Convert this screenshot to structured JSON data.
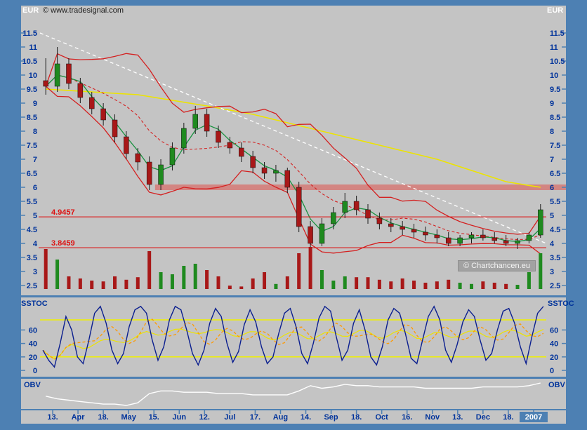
{
  "header": {
    "copyright": "© www.tradesignal.com",
    "currency_left": "EUR",
    "currency_right": "EUR"
  },
  "watermark": "© Chartchancen.eu",
  "colors": {
    "frame": "#4d80b3",
    "plot_bg": "#c4c4c4",
    "axis_text": "#00339b",
    "candle_up": "#1f8a1f",
    "candle_down": "#a81818",
    "bollinger": "#d42020",
    "ma_short": "#18913f",
    "ma_long": "#ede400",
    "trendline": "#ffffff",
    "level": "#dd1111",
    "resistance_band": "#d4827e",
    "sstoc_k": "#0b1f8f",
    "sstoc_d": "#ff9a00",
    "sstoc_slow": "#ede400",
    "sstoc_guide": "#f0f000",
    "obv": "#ffffff"
  },
  "panels": {
    "price": {
      "unit": "EUR",
      "y_ticks": [
        11.5,
        11,
        10.5,
        10,
        9.5,
        9,
        8.5,
        8,
        7.5,
        7,
        6.5,
        6,
        5.5,
        5,
        4.5,
        4,
        3.5,
        3,
        2.5
      ]
    },
    "sstoc": {
      "label": "SSTOC",
      "y_ticks": [
        60,
        40,
        20,
        0
      ]
    },
    "obv": {
      "label": "OBV"
    }
  },
  "x_axis": {
    "labels": [
      "13.",
      "Apr",
      "18.",
      "May",
      "15.",
      "Jun",
      "12.",
      "Jul",
      "17.",
      "Aug",
      "14.",
      "Sep",
      "18.",
      "Oct",
      "16.",
      "Nov",
      "13.",
      "Dec",
      "18.",
      "2007"
    ],
    "highlight": "2007"
  },
  "chart_data": [
    {
      "type": "candlestick",
      "name": "Price (EUR, weekly)",
      "ylim": [
        2.5,
        11.5
      ],
      "dates": [
        "2006-03-13",
        "2006-03-20",
        "2006-03-27",
        "2006-04-03",
        "2006-04-10",
        "2006-04-17",
        "2006-04-24",
        "2006-05-01",
        "2006-05-08",
        "2006-05-15",
        "2006-05-22",
        "2006-05-29",
        "2006-06-05",
        "2006-06-12",
        "2006-06-19",
        "2006-06-26",
        "2006-07-03",
        "2006-07-10",
        "2006-07-17",
        "2006-07-24",
        "2006-07-31",
        "2006-08-07",
        "2006-08-14",
        "2006-08-21",
        "2006-08-28",
        "2006-09-04",
        "2006-09-11",
        "2006-09-18",
        "2006-09-25",
        "2006-10-02",
        "2006-10-09",
        "2006-10-16",
        "2006-10-23",
        "2006-10-30",
        "2006-11-06",
        "2006-11-13",
        "2006-11-20",
        "2006-11-27",
        "2006-12-04",
        "2006-12-11",
        "2006-12-18",
        "2006-12-25",
        "2007-01-01",
        "2007-01-08"
      ],
      "ohlc": [
        [
          9.8,
          10.6,
          9.3,
          9.6
        ],
        [
          9.6,
          11.0,
          9.4,
          10.4
        ],
        [
          10.4,
          10.6,
          9.5,
          9.7
        ],
        [
          9.7,
          9.9,
          9.0,
          9.2
        ],
        [
          9.2,
          9.4,
          8.6,
          8.8
        ],
        [
          8.8,
          9.0,
          8.2,
          8.4
        ],
        [
          8.4,
          8.6,
          7.6,
          7.8
        ],
        [
          7.8,
          8.0,
          7.0,
          7.2
        ],
        [
          7.2,
          7.4,
          6.6,
          6.9
        ],
        [
          6.9,
          7.1,
          5.9,
          6.1
        ],
        [
          6.1,
          7.0,
          5.9,
          6.8
        ],
        [
          6.8,
          7.6,
          6.6,
          7.4
        ],
        [
          7.4,
          8.3,
          7.2,
          8.1
        ],
        [
          8.1,
          8.9,
          7.9,
          8.6
        ],
        [
          8.6,
          8.8,
          7.8,
          8.0
        ],
        [
          8.0,
          8.2,
          7.4,
          7.6
        ],
        [
          7.6,
          7.8,
          7.2,
          7.4
        ],
        [
          7.4,
          7.6,
          6.9,
          7.1
        ],
        [
          7.1,
          7.3,
          6.5,
          6.7
        ],
        [
          6.7,
          6.9,
          6.3,
          6.5
        ],
        [
          6.5,
          6.8,
          6.2,
          6.6
        ],
        [
          6.6,
          6.7,
          5.8,
          6.0
        ],
        [
          6.0,
          6.2,
          4.4,
          4.6
        ],
        [
          4.6,
          4.8,
          3.7,
          4.0
        ],
        [
          4.0,
          4.9,
          3.9,
          4.7
        ],
        [
          4.7,
          5.3,
          4.5,
          5.1
        ],
        [
          5.1,
          5.8,
          4.9,
          5.5
        ],
        [
          5.5,
          5.7,
          5.0,
          5.2
        ],
        [
          5.2,
          5.4,
          4.7,
          4.9
        ],
        [
          4.9,
          5.1,
          4.5,
          4.7
        ],
        [
          4.7,
          4.9,
          4.4,
          4.6
        ],
        [
          4.6,
          4.8,
          4.3,
          4.5
        ],
        [
          4.5,
          4.7,
          4.2,
          4.4
        ],
        [
          4.4,
          4.6,
          4.1,
          4.3
        ],
        [
          4.3,
          4.5,
          4.0,
          4.2
        ],
        [
          4.2,
          4.4,
          3.9,
          4.0
        ],
        [
          4.0,
          4.3,
          3.9,
          4.2
        ],
        [
          4.2,
          4.4,
          4.0,
          4.3
        ],
        [
          4.3,
          4.5,
          4.1,
          4.2
        ],
        [
          4.2,
          4.4,
          4.0,
          4.1
        ],
        [
          4.1,
          4.3,
          3.9,
          4.0
        ],
        [
          4.0,
          4.2,
          3.8,
          4.1
        ],
        [
          4.1,
          4.4,
          4.0,
          4.3
        ],
        [
          4.3,
          5.4,
          4.2,
          5.2
        ]
      ],
      "volume": [
        95,
        70,
        30,
        25,
        20,
        18,
        30,
        22,
        28,
        90,
        40,
        35,
        55,
        60,
        45,
        30,
        8,
        6,
        25,
        40,
        12,
        30,
        85,
        100,
        45,
        20,
        30,
        28,
        28,
        22,
        18,
        25,
        20,
        15,
        18,
        22,
        15,
        12,
        18,
        15,
        12,
        10,
        40,
        85
      ],
      "levels": [
        {
          "value": 4.9457,
          "label": "4.9457"
        },
        {
          "value": 3.8459,
          "label": "3.8459"
        }
      ],
      "resistance_zone": {
        "start_index": 10,
        "low": 5.9,
        "high": 6.1
      },
      "overlays": {
        "ma_long": {
          "name": "long moving average",
          "points": [
            [
              0,
              9.5
            ],
            [
              8,
              9.3
            ],
            [
              14,
              8.9
            ],
            [
              18,
              8.6
            ],
            [
              22,
              8.2
            ],
            [
              26,
              7.8
            ],
            [
              30,
              7.4
            ],
            [
              34,
              7.0
            ],
            [
              37,
              6.6
            ],
            [
              40,
              6.2
            ],
            [
              43,
              6.0
            ]
          ]
        },
        "trendline": {
          "name": "downtrend line",
          "from_value": 11.5,
          "to_value": 4.0
        },
        "bands": {
          "name": "volatility bands",
          "basis": "SMA(8) ± 1.9·σ(8)"
        },
        "ma_short": {
          "name": "short moving average",
          "basis": "SMA(3)"
        }
      }
    },
    {
      "type": "line",
      "name": "SSTOC",
      "ylim": [
        0,
        100
      ],
      "guides": [
        20,
        75
      ],
      "k": [
        30,
        15,
        5,
        40,
        80,
        60,
        20,
        10,
        45,
        85,
        95,
        70,
        30,
        10,
        25,
        65,
        90,
        95,
        85,
        45,
        15,
        35,
        75,
        95,
        90,
        60,
        25,
        8,
        30,
        70,
        92,
        80,
        40,
        12,
        28,
        68,
        90,
        72,
        35,
        10,
        20,
        55,
        85,
        92,
        65,
        25,
        10,
        40,
        78,
        95,
        88,
        50,
        15,
        30,
        70,
        90,
        60,
        20,
        8,
        35,
        75,
        92,
        85,
        55,
        18,
        10,
        45,
        80,
        95,
        75,
        30,
        12,
        38,
        72,
        90,
        80,
        45,
        15,
        25,
        60,
        88,
        92,
        70,
        35,
        10,
        50,
        85,
        95
      ],
      "d_basis": "SMA(5) of k",
      "slow_basis": "SMA(15) of k"
    },
    {
      "type": "line",
      "name": "OBV",
      "values": [
        20,
        18,
        17,
        16,
        15,
        14,
        14,
        13,
        15,
        22,
        24,
        24,
        23,
        23,
        23,
        22,
        22,
        22,
        21,
        21,
        21,
        21,
        24,
        28,
        26,
        27,
        29,
        28,
        28,
        27,
        27,
        27,
        27,
        26,
        26,
        26,
        26,
        26,
        27,
        27,
        27,
        27,
        28,
        30
      ]
    }
  ]
}
